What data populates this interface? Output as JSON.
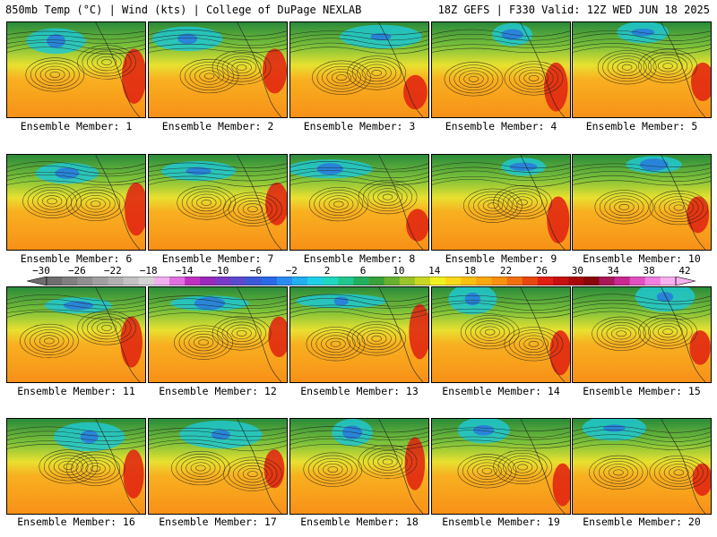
{
  "header": {
    "left_title": "850mb Temp (°C) | Wind (kts) | College of DuPage NEXLAB",
    "right_title": "18Z GEFS | F330 Valid: 12Z WED JUN 18 2025"
  },
  "members": [
    {
      "label": "Ensemble Member: 1"
    },
    {
      "label": "Ensemble Member: 2"
    },
    {
      "label": "Ensemble Member: 3"
    },
    {
      "label": "Ensemble Member: 4"
    },
    {
      "label": "Ensemble Member: 5"
    },
    {
      "label": "Ensemble Member: 6"
    },
    {
      "label": "Ensemble Member: 7"
    },
    {
      "label": "Ensemble Member: 8"
    },
    {
      "label": "Ensemble Member: 9"
    },
    {
      "label": "Ensemble Member: 10"
    },
    {
      "label": "Ensemble Member: 11"
    },
    {
      "label": "Ensemble Member: 12"
    },
    {
      "label": "Ensemble Member: 13"
    },
    {
      "label": "Ensemble Member: 14"
    },
    {
      "label": "Ensemble Member: 15"
    },
    {
      "label": "Ensemble Member: 16"
    },
    {
      "label": "Ensemble Member: 17"
    },
    {
      "label": "Ensemble Member: 18"
    },
    {
      "label": "Ensemble Member: 19"
    },
    {
      "label": "Ensemble Member: 20"
    }
  ],
  "colorbar": {
    "labels": [
      "−30",
      "−26",
      "−22",
      "−18",
      "−14",
      "−10",
      "−6",
      "−2",
      "2",
      "6",
      "10",
      "14",
      "18",
      "22",
      "26",
      "30",
      "34",
      "38",
      "42"
    ],
    "colors": [
      "#6e6e6e",
      "#7f7f7f",
      "#8f8f8f",
      "#a0a0a0",
      "#b0b0b0",
      "#c2c2c2",
      "#d4d4d4",
      "#f0b0f0",
      "#e070e0",
      "#c030c0",
      "#9a28b8",
      "#7a3cc8",
      "#5a4ad0",
      "#3c5ad8",
      "#2a6ae6",
      "#2a8cf0",
      "#22b0f0",
      "#20d0e8",
      "#20d8c0",
      "#20c890",
      "#22b060",
      "#3aa03a",
      "#68b030",
      "#98c428",
      "#c8d820",
      "#f0f020",
      "#f8d818",
      "#f8c010",
      "#f8a810",
      "#f89010",
      "#f07010",
      "#e84810",
      "#e02010",
      "#c81010",
      "#a80808",
      "#880808",
      "#a81858",
      "#c82890",
      "#e050c0",
      "#f080e0",
      "#f8b0f0"
    ]
  }
}
